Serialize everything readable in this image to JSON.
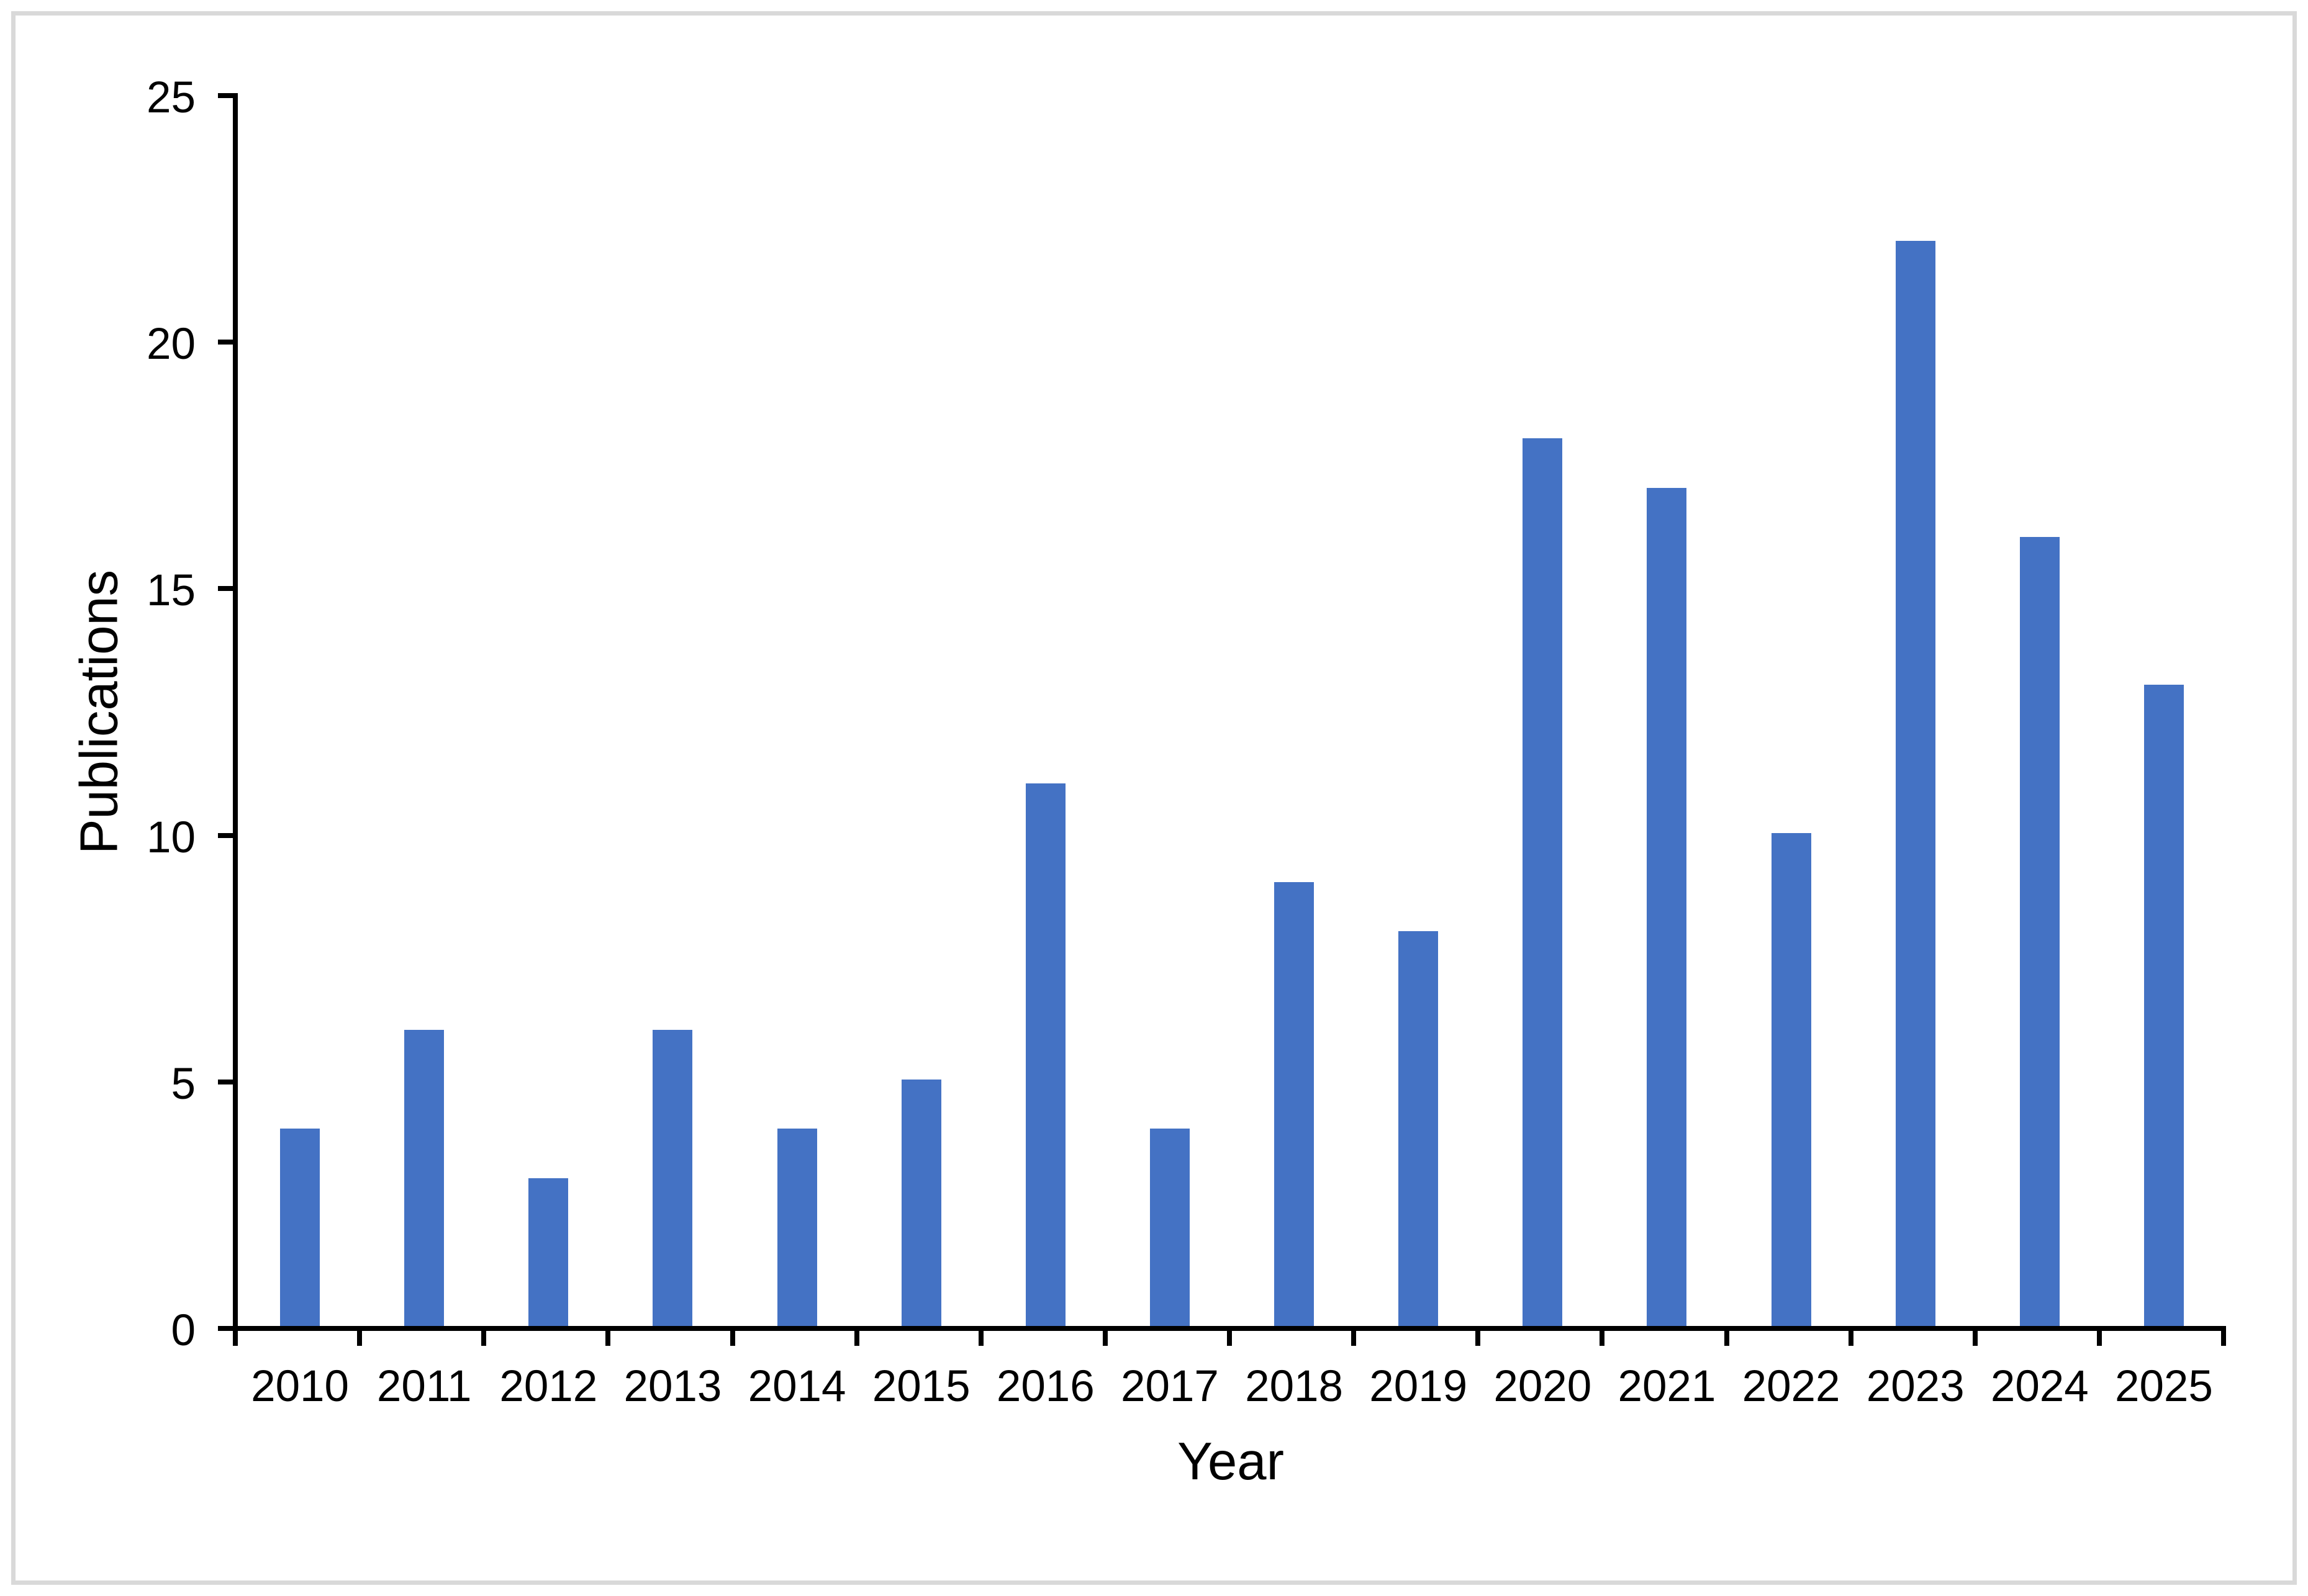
{
  "figure": {
    "background_color": "#FFFFFF",
    "border_color": "#D9D9D9"
  },
  "chart_data": {
    "type": "bar",
    "title": "",
    "xlabel": "Year",
    "ylabel": "Publications",
    "categories": [
      "2010",
      "2011",
      "2012",
      "2013",
      "2014",
      "2015",
      "2016",
      "2017",
      "2018",
      "2019",
      "2020",
      "2021",
      "2022",
      "2023",
      "2024",
      "2025"
    ],
    "values": [
      4,
      6,
      3,
      6,
      4,
      5,
      11,
      4,
      9,
      8,
      18,
      17,
      10,
      22,
      16,
      13
    ],
    "ylim": [
      0,
      25
    ],
    "yticks": [
      0,
      5,
      10,
      15,
      20,
      25
    ],
    "bar_color": "#4472C4",
    "axis_color": "#000000",
    "text_color": "#000000",
    "grid": false,
    "legend": false
  }
}
